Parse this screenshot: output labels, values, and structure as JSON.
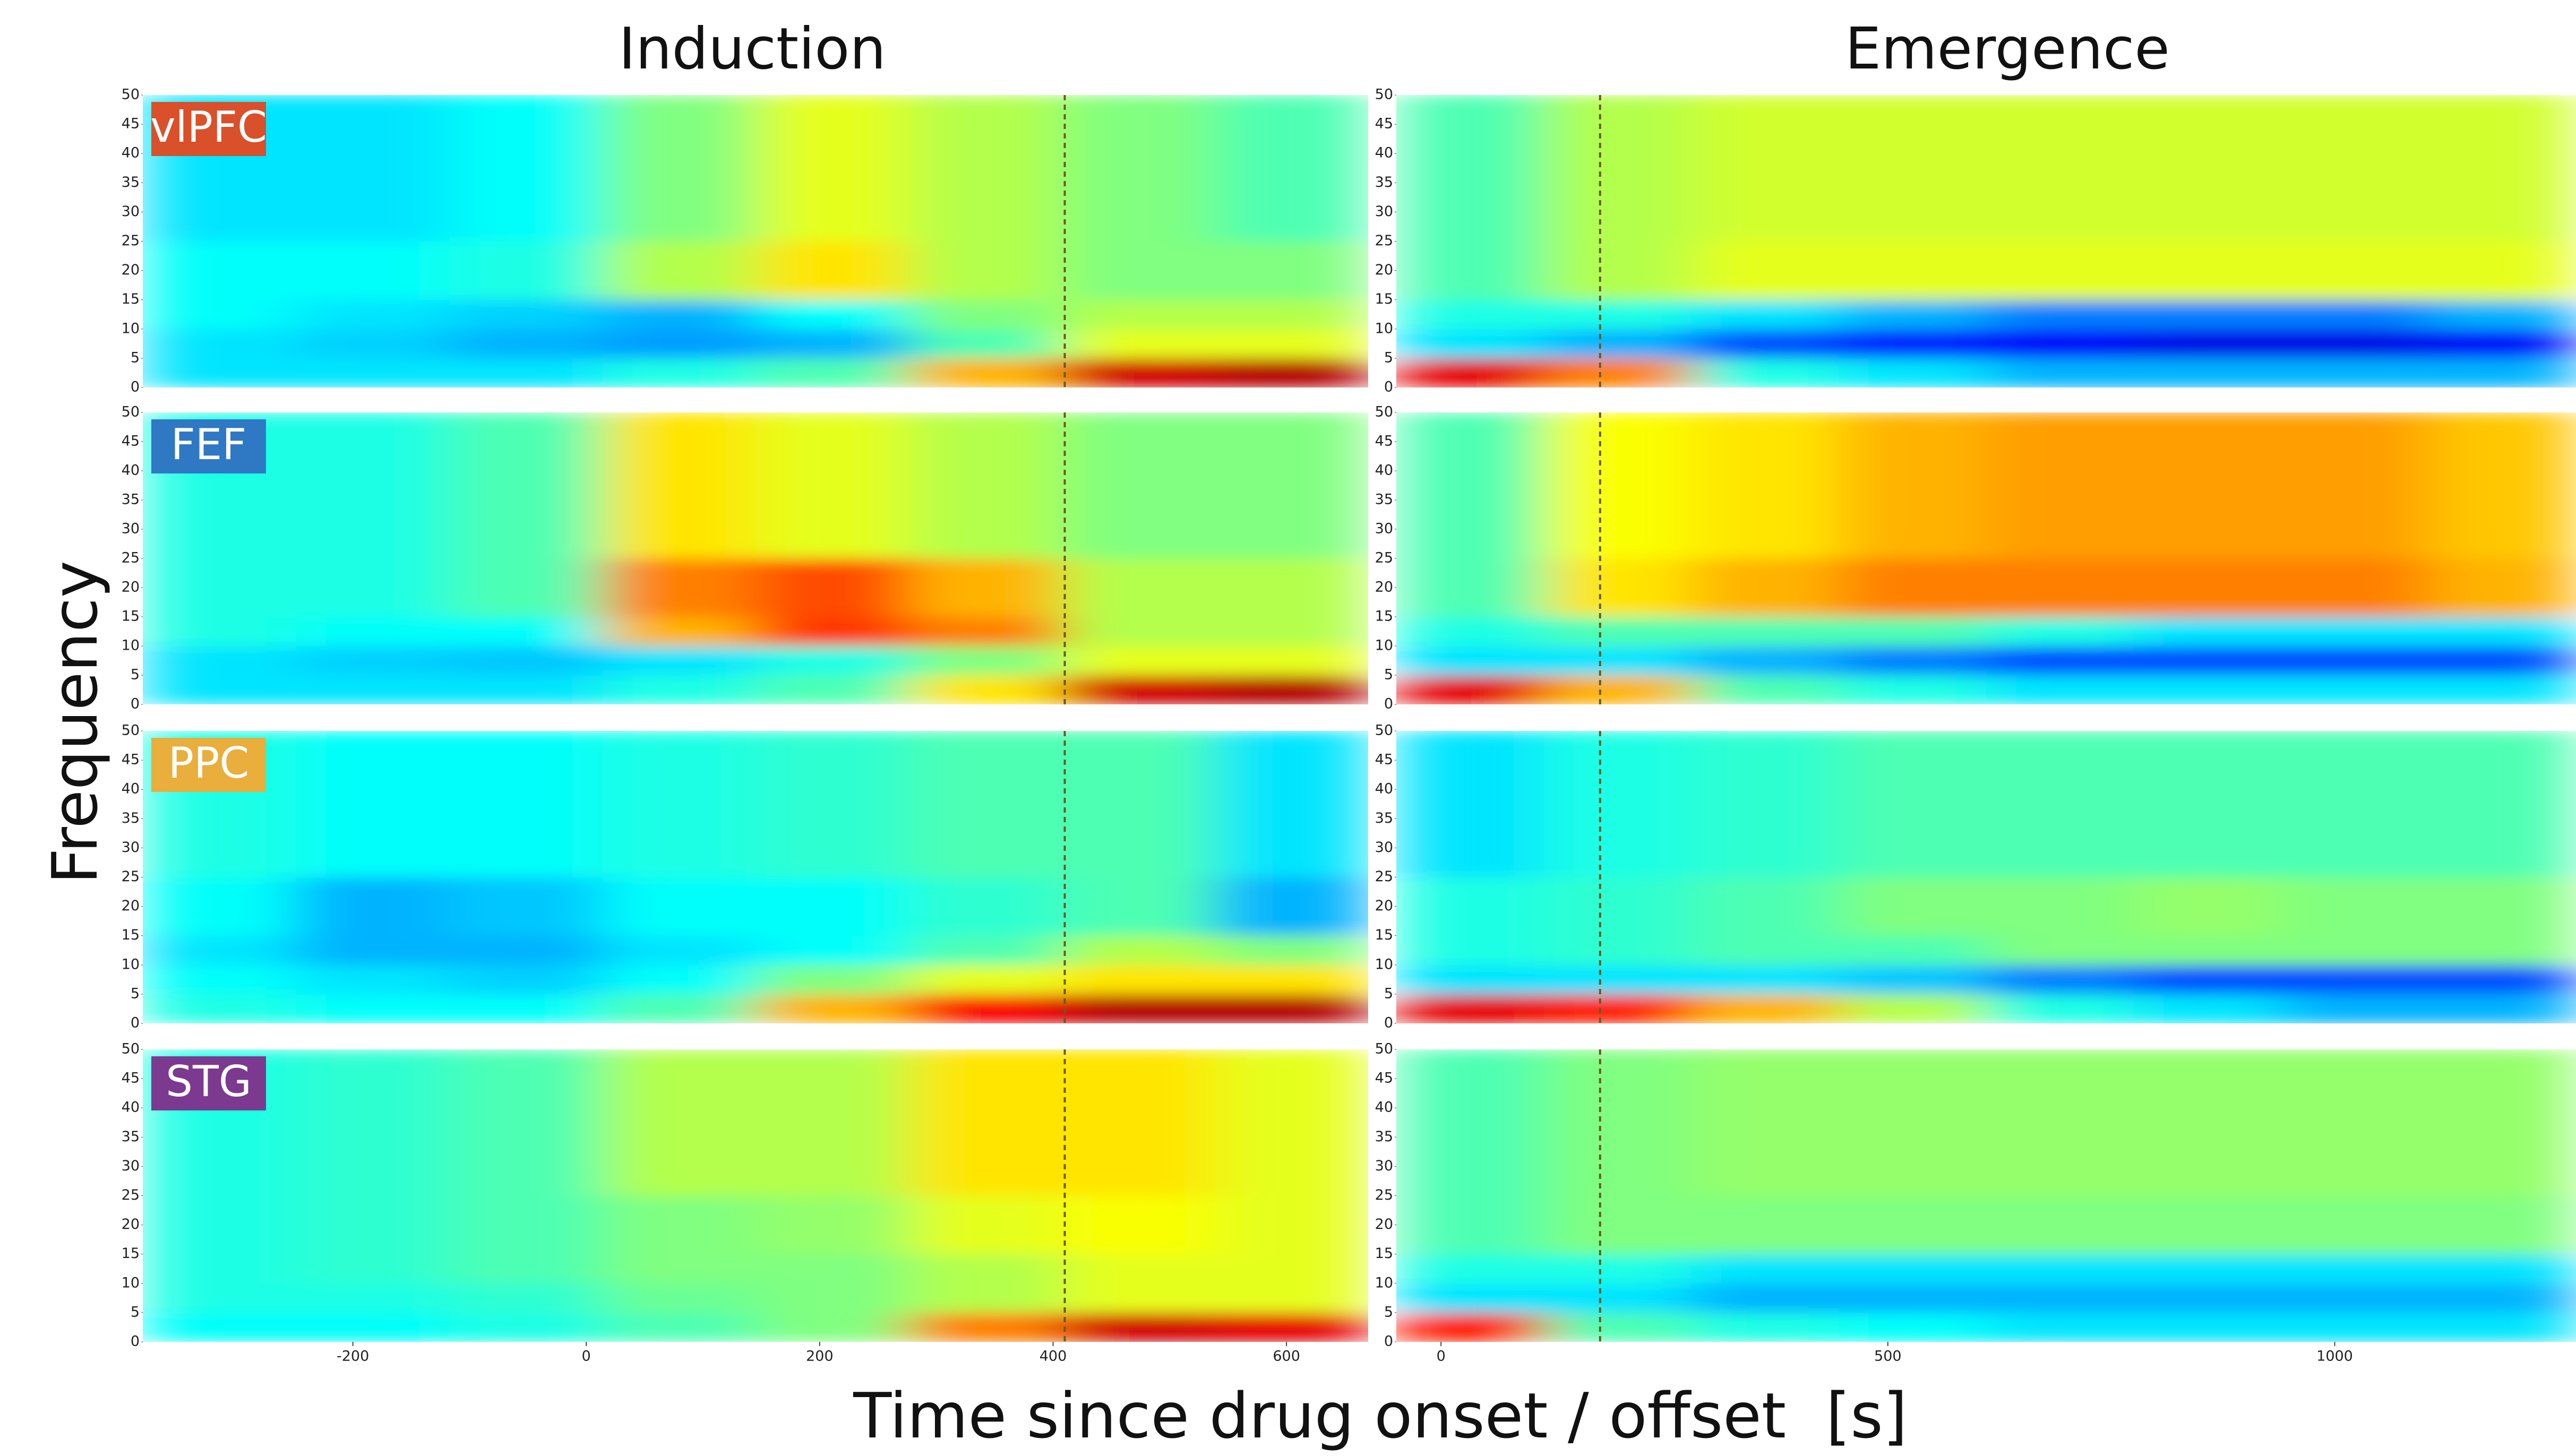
{
  "figure": {
    "ylabel": "Frequency",
    "xlabel": "Time since drug onset / offset  [s]"
  },
  "regions": [
    {
      "label": "vlPFC",
      "color": "#d9502b"
    },
    {
      "label": "FEF",
      "color": "#2f78c4"
    },
    {
      "label": "PPC",
      "color": "#e9ae3b"
    },
    {
      "label": "STG",
      "color": "#7b3a8f"
    }
  ],
  "chart_data": [
    {
      "type": "heatmap",
      "title": "Induction",
      "colormap": "jet",
      "clim": [
        0,
        1
      ],
      "xlim": [
        -380,
        670
      ],
      "xticks": [
        -200,
        0,
        200,
        400,
        600
      ],
      "ylim": [
        0,
        50
      ],
      "yticks": [
        0,
        5,
        10,
        15,
        20,
        25,
        30,
        35,
        40,
        45,
        50
      ],
      "yedges": [
        0,
        5,
        10,
        15,
        25,
        50
      ],
      "marker_x": 410,
      "panels": [
        {
          "values": [
            [
              0.35,
              0.35,
              0.35,
              0.4,
              0.45,
              0.7,
              0.92,
              0.95
            ],
            [
              0.35,
              0.33,
              0.3,
              0.28,
              0.3,
              0.45,
              0.6,
              0.6
            ],
            [
              0.38,
              0.35,
              0.33,
              0.3,
              0.38,
              0.5,
              0.55,
              0.55
            ],
            [
              0.38,
              0.38,
              0.4,
              0.55,
              0.65,
              0.55,
              0.5,
              0.5
            ],
            [
              0.35,
              0.35,
              0.38,
              0.5,
              0.6,
              0.55,
              0.5,
              0.45
            ]
          ]
        },
        {
          "values": [
            [
              0.35,
              0.35,
              0.35,
              0.4,
              0.45,
              0.65,
              0.92,
              0.95
            ],
            [
              0.35,
              0.33,
              0.32,
              0.35,
              0.4,
              0.5,
              0.6,
              0.6
            ],
            [
              0.4,
              0.38,
              0.38,
              0.7,
              0.82,
              0.75,
              0.55,
              0.55
            ],
            [
              0.4,
              0.4,
              0.45,
              0.75,
              0.8,
              0.7,
              0.55,
              0.55
            ],
            [
              0.4,
              0.4,
              0.45,
              0.65,
              0.6,
              0.55,
              0.5,
              0.5
            ]
          ]
        },
        {
          "values": [
            [
              0.4,
              0.38,
              0.38,
              0.45,
              0.7,
              0.88,
              0.95,
              0.95
            ],
            [
              0.38,
              0.35,
              0.33,
              0.38,
              0.5,
              0.6,
              0.65,
              0.65
            ],
            [
              0.35,
              0.3,
              0.3,
              0.35,
              0.38,
              0.45,
              0.55,
              0.5
            ],
            [
              0.38,
              0.3,
              0.32,
              0.38,
              0.38,
              0.42,
              0.45,
              0.3
            ],
            [
              0.4,
              0.38,
              0.38,
              0.4,
              0.42,
              0.45,
              0.45,
              0.35
            ]
          ]
        },
        {
          "values": [
            [
              0.38,
              0.38,
              0.4,
              0.45,
              0.5,
              0.75,
              0.92,
              0.9
            ],
            [
              0.4,
              0.4,
              0.42,
              0.48,
              0.5,
              0.55,
              0.6,
              0.6
            ],
            [
              0.4,
              0.42,
              0.45,
              0.5,
              0.5,
              0.55,
              0.6,
              0.6
            ],
            [
              0.4,
              0.42,
              0.45,
              0.5,
              0.52,
              0.6,
              0.62,
              0.6
            ],
            [
              0.4,
              0.42,
              0.45,
              0.55,
              0.55,
              0.65,
              0.65,
              0.6
            ]
          ]
        }
      ]
    },
    {
      "type": "heatmap",
      "title": "Emergence",
      "colormap": "jet",
      "clim": [
        0,
        1
      ],
      "xlim": [
        -50,
        1270
      ],
      "xticks": [
        0,
        500,
        1000
      ],
      "ylim": [
        0,
        50
      ],
      "yticks": [
        0,
        5,
        10,
        15,
        20,
        25,
        30,
        35,
        40,
        45,
        50
      ],
      "yedges": [
        0,
        5,
        10,
        15,
        25,
        50
      ],
      "marker_x": 178,
      "panels": [
        {
          "values": [
            [
              0.9,
              0.75,
              0.4,
              0.35,
              0.3,
              0.3,
              0.3,
              0.3
            ],
            [
              0.35,
              0.3,
              0.2,
              0.15,
              0.12,
              0.1,
              0.1,
              0.12
            ],
            [
              0.4,
              0.4,
              0.35,
              0.3,
              0.25,
              0.25,
              0.25,
              0.3
            ],
            [
              0.45,
              0.55,
              0.6,
              0.6,
              0.6,
              0.6,
              0.6,
              0.6
            ],
            [
              0.45,
              0.55,
              0.58,
              0.58,
              0.58,
              0.58,
              0.58,
              0.58
            ]
          ]
        },
        {
          "values": [
            [
              0.9,
              0.7,
              0.45,
              0.4,
              0.35,
              0.35,
              0.35,
              0.35
            ],
            [
              0.35,
              0.35,
              0.3,
              0.25,
              0.2,
              0.2,
              0.2,
              0.2
            ],
            [
              0.4,
              0.45,
              0.45,
              0.45,
              0.4,
              0.35,
              0.35,
              0.35
            ],
            [
              0.45,
              0.65,
              0.7,
              0.75,
              0.75,
              0.75,
              0.75,
              0.7
            ],
            [
              0.45,
              0.62,
              0.65,
              0.7,
              0.72,
              0.72,
              0.72,
              0.68
            ]
          ]
        },
        {
          "values": [
            [
              0.9,
              0.85,
              0.7,
              0.55,
              0.4,
              0.35,
              0.3,
              0.3
            ],
            [
              0.35,
              0.35,
              0.35,
              0.32,
              0.25,
              0.2,
              0.2,
              0.2
            ],
            [
              0.4,
              0.42,
              0.45,
              0.45,
              0.5,
              0.5,
              0.5,
              0.5
            ],
            [
              0.4,
              0.42,
              0.45,
              0.5,
              0.5,
              0.52,
              0.5,
              0.5
            ],
            [
              0.35,
              0.4,
              0.42,
              0.45,
              0.45,
              0.45,
              0.45,
              0.45
            ]
          ]
        },
        {
          "values": [
            [
              0.85,
              0.45,
              0.4,
              0.38,
              0.35,
              0.35,
              0.35,
              0.35
            ],
            [
              0.35,
              0.35,
              0.3,
              0.3,
              0.3,
              0.3,
              0.3,
              0.3
            ],
            [
              0.4,
              0.4,
              0.35,
              0.35,
              0.35,
              0.35,
              0.35,
              0.35
            ],
            [
              0.45,
              0.5,
              0.5,
              0.5,
              0.5,
              0.5,
              0.5,
              0.5
            ],
            [
              0.45,
              0.5,
              0.52,
              0.52,
              0.52,
              0.52,
              0.52,
              0.52
            ]
          ]
        }
      ]
    }
  ]
}
